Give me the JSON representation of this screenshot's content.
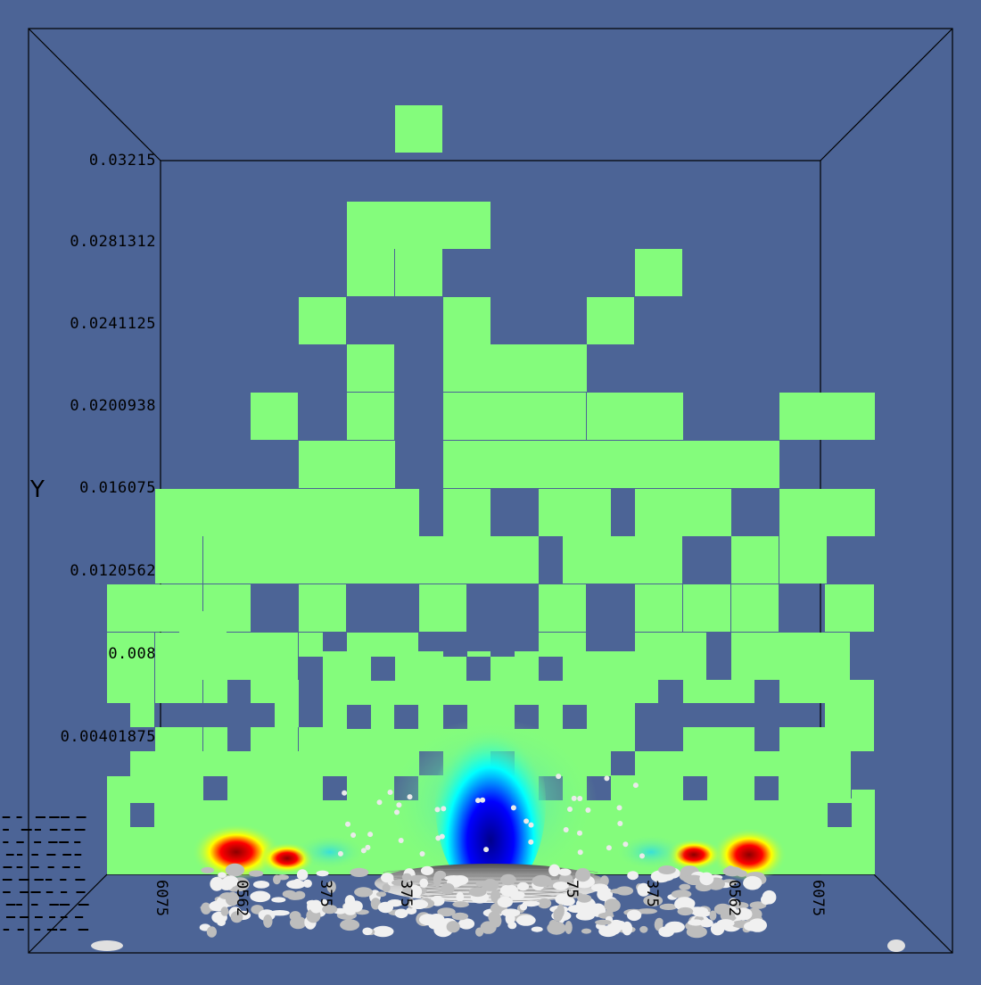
{
  "app": {
    "view": "3D render viewport",
    "background_color": "#4c6496"
  },
  "axes": {
    "y_label": "Y",
    "y_ticks": [
      "0.03215",
      "0.0281312",
      "0.0241125",
      "0.0200938",
      "0.016075",
      "0.0120562",
      "0.008",
      "0.00401875"
    ],
    "x_ticks": [
      "6075",
      "0562",
      "375",
      "375",
      "75",
      "375",
      "0562",
      "6075"
    ]
  },
  "colors": {
    "cell_fill": "#84fc7c",
    "box_lines": "#000000",
    "colormap": [
      "#00008c",
      "#0000ff",
      "#00ffff",
      "#84fc7c",
      "#ffff00",
      "#ff0000",
      "#8c0000"
    ]
  }
}
